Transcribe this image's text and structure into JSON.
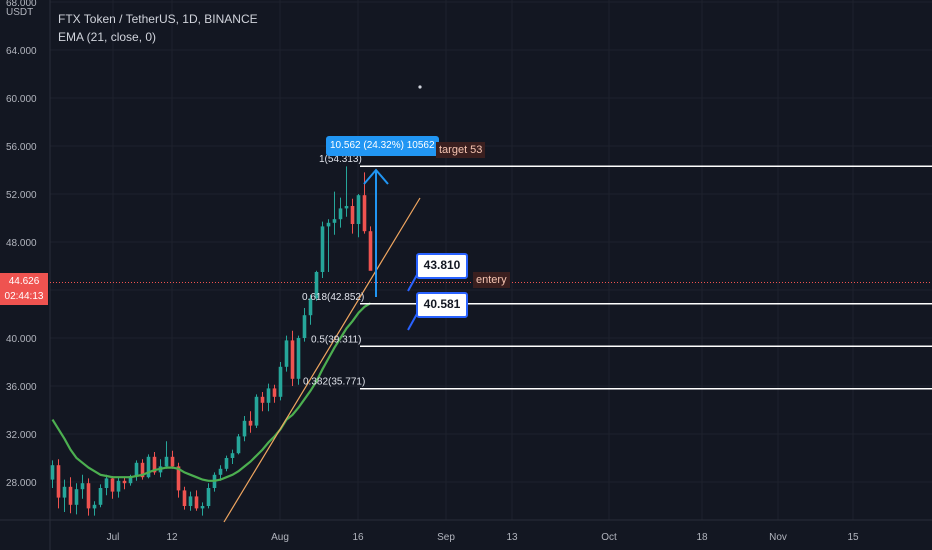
{
  "legend": {
    "symbol_line": "FTX Token / TetherUS, 1D, BINANCE",
    "ema_line": "EMA (21, close, 0)"
  },
  "axis": {
    "unit": "USDT",
    "y_ticks": [
      "68.000",
      "64.000",
      "60.000",
      "56.000",
      "52.000",
      "48.000",
      "44.000",
      "40.000",
      "36.000",
      "32.000",
      "28.000"
    ],
    "x_ticks": [
      "Jul",
      "12",
      "Aug",
      "16",
      "Sep",
      "13",
      "Oct",
      "18",
      "Nov",
      "15"
    ]
  },
  "last_price": {
    "value": "44.626",
    "countdown": "02:44:13"
  },
  "measure_label": "10.562 (24.32%) 10562",
  "fib_labels": {
    "level_1": "1(54.313)",
    "level_618": "0.618(42.852)",
    "level_5": "0.5(39.311)",
    "level_382": "0.382(35.771)"
  },
  "annotations": {
    "target": "target 53",
    "entry": "entery",
    "callout_upper": "43.810",
    "callout_lower": "40.581"
  },
  "colors": {
    "background": "#131722",
    "up": "#26a69a",
    "down": "#ef5350",
    "ema": "#4caf50",
    "trendline": "#f0a660",
    "fib_line": "#ffffff",
    "measure": "#2196f3"
  },
  "chart_data": {
    "type": "candlestick",
    "ylim": [
      26,
      68
    ],
    "series": [
      {
        "name": "FTX Token / TetherUS, 1D, BINANCE",
        "values": [
          [
            28.2,
            29.8,
            27.5,
            29.4
          ],
          [
            29.4,
            29.9,
            25.8,
            26.7
          ],
          [
            26.7,
            28.2,
            25.5,
            27.6
          ],
          [
            27.6,
            28.4,
            25.4,
            26.1
          ],
          [
            26.1,
            27.9,
            25.3,
            27.4
          ],
          [
            27.4,
            28.6,
            26.6,
            27.9
          ],
          [
            27.9,
            28.3,
            25.2,
            25.8
          ],
          [
            25.8,
            26.4,
            25.2,
            26.1
          ],
          [
            26.1,
            27.8,
            25.9,
            27.5
          ],
          [
            27.5,
            28.6,
            26.9,
            28.3
          ],
          [
            28.3,
            28.5,
            26.6,
            27.2
          ],
          [
            27.2,
            28.4,
            26.7,
            28.1
          ],
          [
            28.1,
            28.4,
            27.4,
            27.9
          ],
          [
            27.9,
            28.6,
            27.7,
            28.5
          ],
          [
            28.5,
            29.8,
            28.1,
            29.6
          ],
          [
            29.6,
            29.9,
            28.2,
            28.4
          ],
          [
            28.4,
            30.3,
            28.3,
            30.1
          ],
          [
            30.1,
            30.5,
            28.6,
            28.8
          ],
          [
            28.8,
            29.9,
            28.4,
            29.3
          ],
          [
            29.3,
            31.4,
            29.1,
            30.1
          ],
          [
            30.1,
            30.6,
            29.1,
            29.3
          ],
          [
            29.3,
            29.6,
            26.7,
            27.3
          ],
          [
            27.3,
            27.6,
            25.7,
            26.0
          ],
          [
            26.0,
            27.2,
            25.6,
            26.8
          ],
          [
            26.8,
            27.3,
            25.6,
            25.8
          ],
          [
            25.8,
            26.3,
            25.2,
            26.0
          ],
          [
            26.0,
            27.9,
            25.8,
            27.5
          ],
          [
            27.5,
            28.8,
            27.2,
            28.6
          ],
          [
            28.6,
            29.4,
            28.1,
            29.1
          ],
          [
            29.1,
            30.2,
            28.9,
            30.0
          ],
          [
            30.0,
            30.7,
            29.5,
            30.4
          ],
          [
            30.4,
            32.0,
            30.3,
            31.8
          ],
          [
            31.8,
            33.5,
            31.4,
            33.1
          ],
          [
            33.1,
            33.9,
            32.1,
            32.7
          ],
          [
            32.7,
            35.3,
            32.5,
            35.1
          ],
          [
            35.1,
            35.5,
            33.9,
            34.6
          ],
          [
            34.6,
            36.2,
            33.9,
            35.8
          ],
          [
            35.8,
            36.1,
            34.6,
            35.1
          ],
          [
            35.1,
            38.0,
            34.8,
            37.6
          ],
          [
            37.6,
            40.2,
            37.2,
            39.8
          ],
          [
            39.8,
            40.6,
            36.0,
            36.6
          ],
          [
            36.6,
            40.2,
            36.1,
            40.0
          ],
          [
            40.0,
            42.5,
            39.7,
            41.9
          ],
          [
            41.9,
            43.6,
            41.1,
            43.3
          ],
          [
            43.3,
            45.6,
            43.1,
            45.5
          ],
          [
            45.5,
            49.7,
            45.0,
            49.3
          ],
          [
            49.3,
            49.9,
            45.5,
            49.6
          ],
          [
            49.6,
            52.2,
            48.6,
            49.9
          ],
          [
            49.9,
            51.7,
            49.2,
            50.8
          ],
          [
            50.8,
            54.3,
            50.1,
            51.0
          ],
          [
            51.0,
            51.6,
            48.7,
            49.5
          ],
          [
            49.5,
            52.0,
            48.4,
            51.9
          ],
          [
            51.9,
            53.8,
            48.7,
            48.9
          ],
          [
            48.9,
            49.3,
            45.8,
            45.6
          ]
        ]
      },
      {
        "name": "EMA (21, close, 0)",
        "values": [
          33.2,
          32.4,
          31.6,
          30.7,
          30.0,
          29.6,
          29.2,
          28.9,
          28.6,
          28.5,
          28.4,
          28.4,
          28.4,
          28.4,
          28.5,
          28.6,
          28.8,
          29.0,
          29.1,
          29.2,
          29.2,
          29.1,
          28.8,
          28.6,
          28.4,
          28.2,
          28.1,
          28.1,
          28.2,
          28.4,
          28.6,
          28.9,
          29.3,
          29.7,
          30.2,
          30.7,
          31.3,
          31.8,
          32.4,
          33.2,
          33.6,
          34.2,
          34.9,
          35.6,
          36.4,
          37.4,
          38.3,
          39.2,
          40.0,
          40.8,
          41.4,
          42.1,
          42.6,
          42.9
        ]
      }
    ],
    "fib_levels": [
      {
        "ratio": "1",
        "price": 54.313
      },
      {
        "ratio": "0.618",
        "price": 42.852
      },
      {
        "ratio": "0.5",
        "price": 39.311
      },
      {
        "ratio": "0.382",
        "price": 35.771
      }
    ],
    "last_price": 44.626
  }
}
